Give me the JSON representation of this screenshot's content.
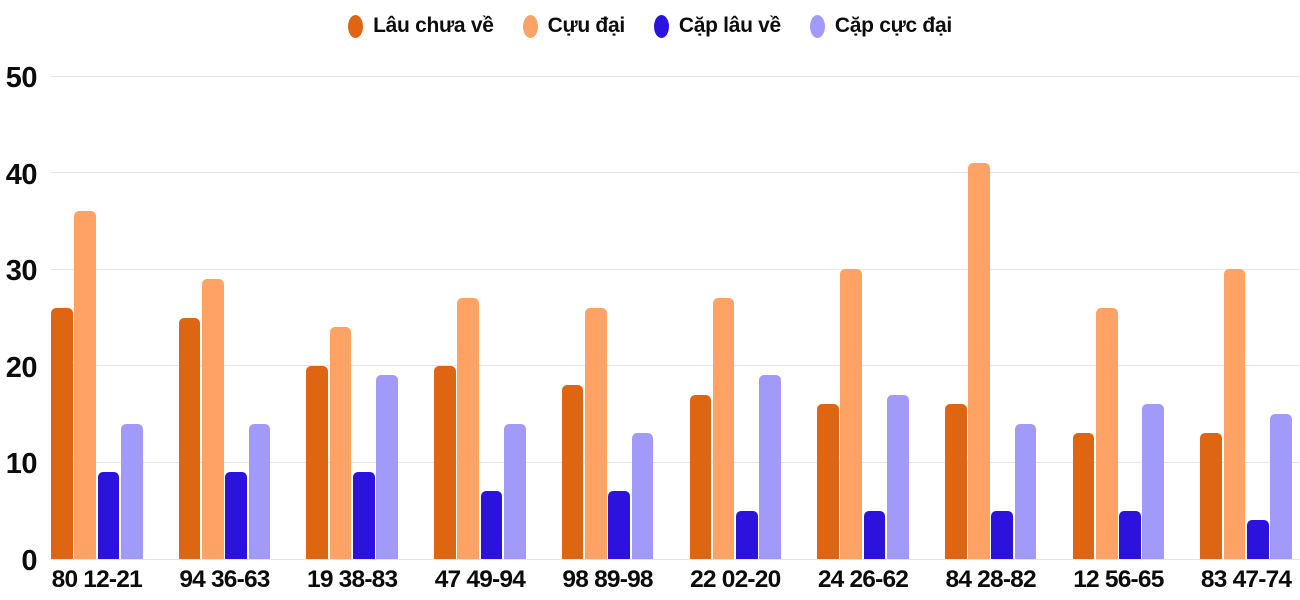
{
  "chart_data": {
    "type": "bar",
    "title": "",
    "xlabel": "",
    "ylabel": "",
    "categories": [
      "80 12-21",
      "94 36-63",
      "19 38-83",
      "47 49-94",
      "98 89-98",
      "22 02-20",
      "24 26-62",
      "84 28-82",
      "12 56-65",
      "83 47-74"
    ],
    "series": [
      {
        "name": "Lâu chưa về",
        "color": "#de6512",
        "values": [
          26,
          25,
          20,
          20,
          18,
          17,
          16,
          16,
          13,
          13
        ]
      },
      {
        "name": "Cựu đại",
        "color": "#ffa265",
        "values": [
          36,
          29,
          24,
          27,
          26,
          27,
          30,
          41,
          26,
          30
        ]
      },
      {
        "name": "Cặp lâu về",
        "color": "#2b12dc",
        "values": [
          9,
          9,
          9,
          7,
          7,
          5,
          5,
          5,
          5,
          4
        ]
      },
      {
        "name": "Cặp cực đại",
        "color": "#a19af9",
        "values": [
          14,
          14,
          19,
          14,
          13,
          19,
          17,
          14,
          16,
          15
        ]
      }
    ],
    "ylim": [
      0,
      50
    ],
    "yticks": [
      0,
      10,
      20,
      30,
      40,
      50
    ],
    "grid": true,
    "legend_position": "top"
  },
  "colors": {
    "grid": "#e5e5e5",
    "text": "#0c0c0c",
    "background": "#ffffff"
  }
}
